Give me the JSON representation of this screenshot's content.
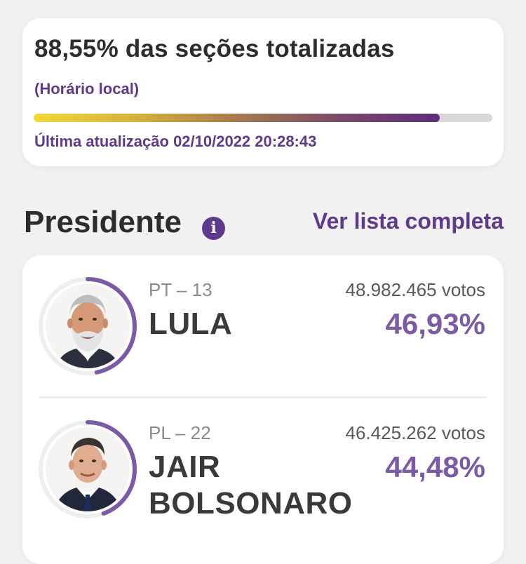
{
  "status": {
    "title": "88,55% das seções totalizadas",
    "local_time_label": "(Horário local)",
    "progress_fraction": 0.8855,
    "updated_label": "Última atualização 02/10/2022 20:28:43"
  },
  "section": {
    "title": "Presidente",
    "info_icon": "info-icon",
    "view_all_label": "Ver lista completa"
  },
  "colors": {
    "accent": "#5e3a8c",
    "percent": "#7b5ba6",
    "ring": "#7b5ba6",
    "progress_start": "#f3d736",
    "progress_end": "#5c2d7c"
  },
  "candidates": [
    {
      "party": "PT – 13",
      "name": "LULA",
      "votes": "48.982.465 votos",
      "percent": "46,93%",
      "share": 0.4693
    },
    {
      "party": "PL – 22",
      "name_line1": "JAIR",
      "name_line2": "BOLSONARO",
      "votes": "46.425.262 votos",
      "percent": "44,48%",
      "share": 0.4448
    }
  ]
}
